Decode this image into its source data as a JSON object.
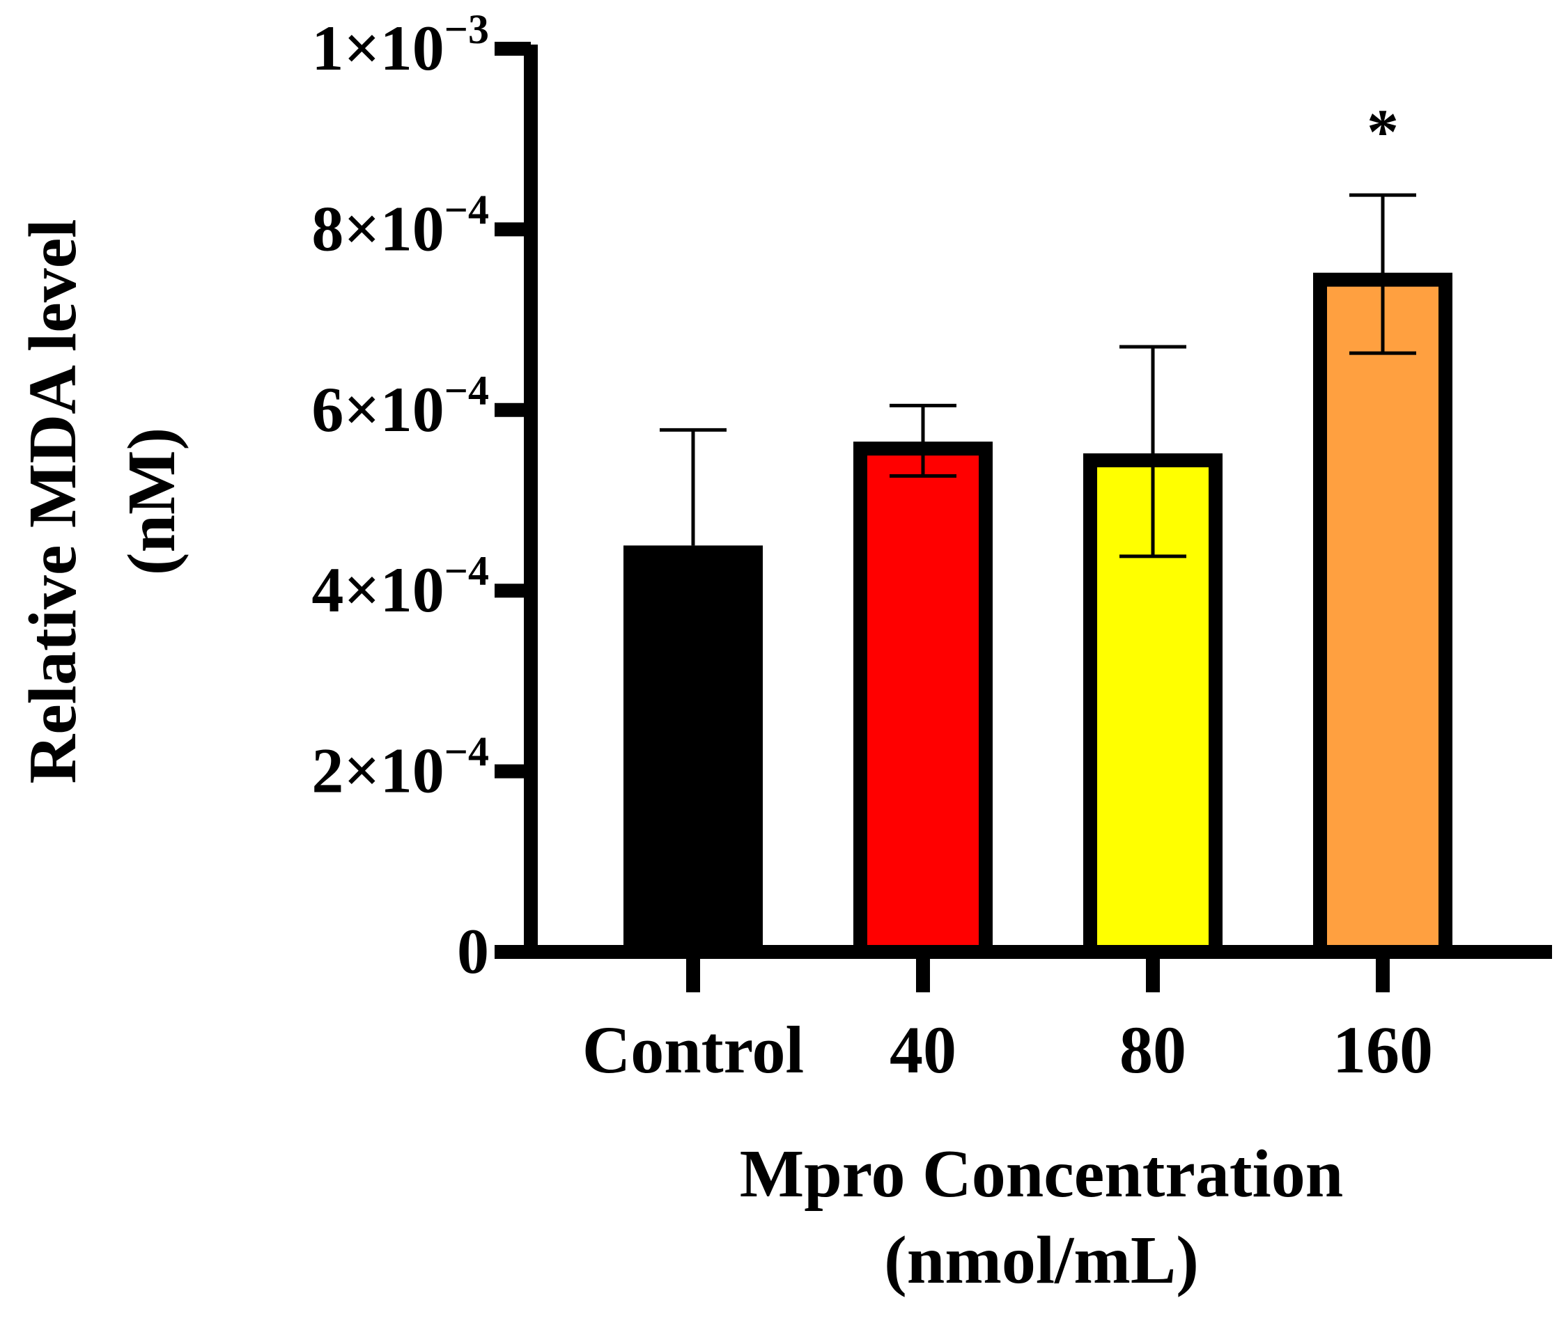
{
  "chart_data": {
    "type": "bar",
    "title": "",
    "xlabel": "Mpro Concentration (nmol/mL)",
    "xlabel_lines": [
      "Mpro Concentration",
      "(nmol/mL)"
    ],
    "ylabel": "Relative MDA level (nM)",
    "ylabel_lines": [
      "Relative MDA level",
      "(nM)"
    ],
    "ylim": [
      0,
      0.001
    ],
    "categories": [
      "Control",
      "40",
      "80",
      "160"
    ],
    "values": [
      0.00045,
      0.000565,
      0.000552,
      0.000752
    ],
    "error_upper": [
      0.000578,
      0.000605,
      0.00067,
      0.000838
    ],
    "error_lower": [
      null,
      0.000527,
      0.000438,
      0.000663
    ],
    "colors": [
      "#000000",
      "#ff0000",
      "#ffff00",
      "#ffa040"
    ],
    "significance": [
      "",
      "",
      "",
      "*"
    ],
    "yticks": [
      {
        "value": 0,
        "mantissa": "0",
        "exponent": ""
      },
      {
        "value": 0.0002,
        "mantissa": "2×10",
        "exponent": "−4"
      },
      {
        "value": 0.0004,
        "mantissa": "4×10",
        "exponent": "−4"
      },
      {
        "value": 0.0006,
        "mantissa": "6×10",
        "exponent": "−4"
      },
      {
        "value": 0.0008,
        "mantissa": "8×10",
        "exponent": "−4"
      },
      {
        "value": 0.001,
        "mantissa": "1×10",
        "exponent": "−3"
      }
    ]
  }
}
